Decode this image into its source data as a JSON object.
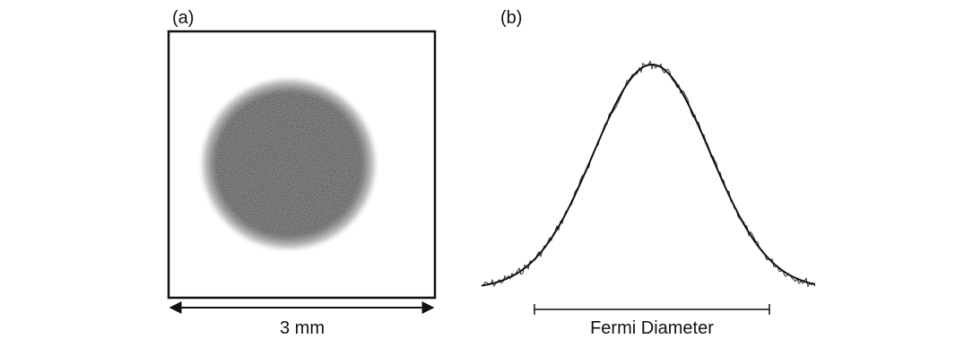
{
  "panels": [
    {
      "label": "(a)",
      "scale_label": "3 mm"
    },
    {
      "label": "(b)",
      "scale_label": "Fermi Diameter"
    }
  ]
}
